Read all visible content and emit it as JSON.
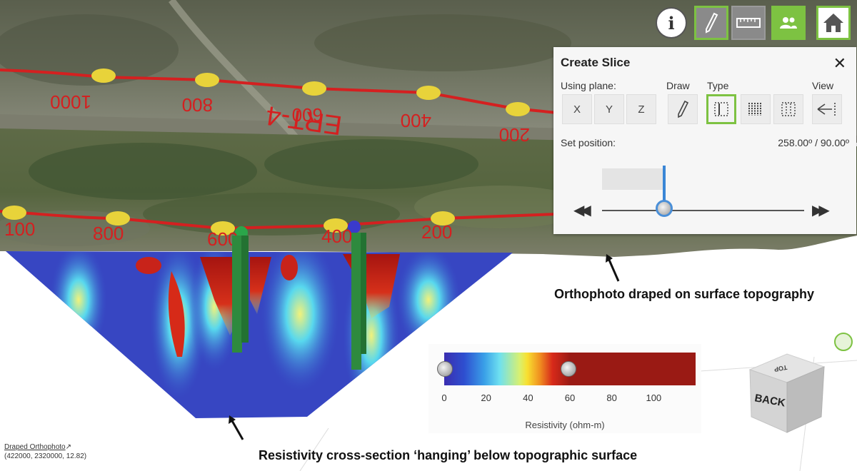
{
  "toolbar": {
    "info_icon": "info-icon",
    "draw_icon": "pencil-icon",
    "measure_icon": "ruler-icon",
    "people_icon": "people-icon",
    "home_icon": "home-icon",
    "accent_color": "#7dc242"
  },
  "slice_panel": {
    "title": "Create Slice",
    "using_plane_label": "Using plane:",
    "plane_options": [
      "X",
      "Y",
      "Z"
    ],
    "draw_label": "Draw",
    "type_label": "Type",
    "view_label": "View",
    "set_position_label": "Set position:",
    "position_value": "258.00º / 90.00º",
    "slider_fraction": 0.3
  },
  "map_labels": {
    "profile_name": "ERT-4",
    "upper_distances": [
      "1000",
      "800",
      "600",
      "400",
      "200"
    ],
    "lower_distances": [
      "100",
      "800",
      "600",
      "400",
      "200"
    ]
  },
  "annotations": {
    "orthophoto": "Orthophoto draped on surface topography",
    "cross_section": "Resistivity cross-section ‘hanging’ below topographic surface"
  },
  "legend": {
    "title": "Resistivity (ohm-m)",
    "ticks": [
      "0",
      "20",
      "40",
      "60",
      "80",
      "100"
    ],
    "range": [
      0,
      120
    ],
    "thumb_values": [
      0,
      59
    ]
  },
  "coordinates": {
    "layer_link": "Draped Orthophoto",
    "readout": "(422000, 2320000, 12.82)"
  },
  "navigation_cube": {
    "face_label": "BACK",
    "top_label": "TOP"
  }
}
